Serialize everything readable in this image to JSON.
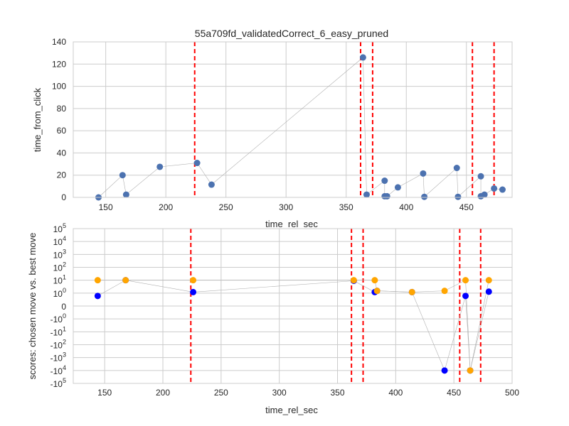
{
  "title": "55a709fd_validatedCorrect_6_easy_pruned",
  "colors": {
    "grid": "#cccccc",
    "frame": "#cccccc",
    "connector": "#b0b0b0",
    "vline": "#ff0000",
    "top_marker": "#4c72b0",
    "chosen_marker": "#0000ff",
    "best_marker": "#ffa500"
  },
  "chart_data": [
    {
      "type": "scatter",
      "title": "55a709fd_validatedCorrect_6_easy_pruned",
      "xlabel": "time_rel_sec",
      "ylabel": "time_from_click",
      "xlim": [
        123,
        488
      ],
      "ylim": [
        0,
        140
      ],
      "grid": true,
      "x_ticks": [
        150,
        200,
        250,
        300,
        350,
        400,
        450
      ],
      "y_ticks": [
        0,
        20,
        40,
        60,
        80,
        100,
        120,
        140
      ],
      "x_tick_labels": [
        "150",
        "200",
        "250",
        "300",
        "350",
        "400",
        "450"
      ],
      "y_tick_labels": [
        "0",
        "20",
        "40",
        "60",
        "80",
        "100",
        "120",
        "140"
      ],
      "series": [
        {
          "points": [
            [
              144,
              0
            ],
            [
              164,
              20
            ],
            [
              167,
              2.5
            ],
            [
              195,
              27.5
            ],
            [
              226,
              31
            ],
            [
              238,
              11.5
            ],
            [
              364,
              126
            ],
            [
              367,
              2.5
            ],
            [
              382,
              15
            ],
            [
              382,
              1
            ],
            [
              384,
              1
            ],
            [
              393,
              9
            ],
            [
              414,
              21.5
            ],
            [
              415,
              0.5
            ],
            [
              442,
              26.5
            ],
            [
              443,
              0.5
            ],
            [
              462,
              19
            ],
            [
              462,
              1
            ],
            [
              465,
              2.5
            ],
            [
              473,
              8
            ],
            [
              480,
              7
            ]
          ]
        }
      ],
      "vlines": [
        224,
        362,
        372,
        455,
        473
      ]
    },
    {
      "type": "scatter",
      "xlabel": "time_rel_sec",
      "ylabel": "scores: chosen move vs. best move",
      "xlim": [
        123,
        500
      ],
      "yscale": "symlog",
      "ylim": [
        -100000,
        100000
      ],
      "grid": true,
      "x_ticks": [
        150,
        200,
        250,
        300,
        350,
        400,
        450,
        500
      ],
      "x_tick_labels": [
        "150",
        "200",
        "250",
        "300",
        "350",
        "400",
        "450",
        "500"
      ],
      "y_ticks": [
        100000,
        10000,
        1000,
        100,
        10,
        1,
        0,
        -1,
        -10,
        -100,
        -1000,
        -10000,
        -100000
      ],
      "y_tick_labels": [
        {
          "base": "10",
          "exp": "5"
        },
        {
          "base": "10",
          "exp": "4"
        },
        {
          "base": "10",
          "exp": "3"
        },
        {
          "base": "10",
          "exp": "2"
        },
        {
          "base": "10",
          "exp": "1"
        },
        {
          "base": "10",
          "exp": "0"
        },
        {
          "base": "0",
          "exp": ""
        },
        {
          "base": "-10",
          "exp": "0"
        },
        {
          "base": "-10",
          "exp": "1"
        },
        {
          "base": "-10",
          "exp": "2"
        },
        {
          "base": "-10",
          "exp": "3"
        },
        {
          "base": "-10",
          "exp": "4"
        },
        {
          "base": "-10",
          "exp": "5"
        }
      ],
      "series": [
        {
          "key": "chosen",
          "points": [
            [
              144,
              0.6
            ],
            [
              168,
              10
            ],
            [
              226,
              1.2
            ],
            [
              364,
              9
            ],
            [
              382,
              1.2
            ],
            [
              384,
              1.5
            ],
            [
              414,
              1.2
            ],
            [
              442,
              -10000
            ],
            [
              460,
              0.6
            ],
            [
              464,
              -10000
            ],
            [
              480,
              1.3
            ]
          ]
        },
        {
          "key": "best",
          "points": [
            [
              144,
              10
            ],
            [
              168,
              10
            ],
            [
              226,
              10
            ],
            [
              364,
              10
            ],
            [
              382,
              10
            ],
            [
              384,
              1.5
            ],
            [
              414,
              1.2
            ],
            [
              442,
              1.5
            ],
            [
              460,
              10
            ],
            [
              464,
              -10000
            ],
            [
              480,
              10
            ]
          ]
        }
      ],
      "vlines": [
        224,
        362,
        372,
        455,
        473
      ]
    }
  ]
}
